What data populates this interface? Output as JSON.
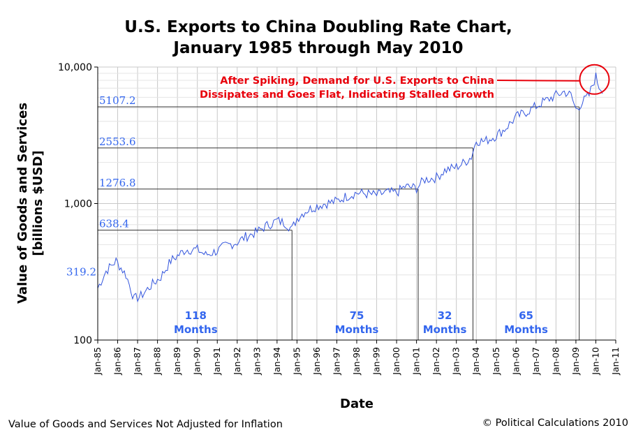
{
  "chart_data": {
    "type": "line",
    "title_lines": [
      "U.S. Exports to China Doubling Rate Chart,",
      "January 1985 through May 2010"
    ],
    "xlabel": "Date",
    "ylabel_lines": [
      "Value of Goods and Services",
      "[billions $USD]"
    ],
    "y_scale": "log",
    "ylim": [
      100,
      10000
    ],
    "y_ticks": [
      100,
      1000,
      10000
    ],
    "y_tick_labels": [
      "100",
      "1,000",
      "10,000"
    ],
    "x_range": [
      "1985-01",
      "2011-01"
    ],
    "x_tick_labels": [
      "Jan-85",
      "Jan-86",
      "Jan-87",
      "Jan-88",
      "Jan-89",
      "Jan-90",
      "Jan-91",
      "Jan-92",
      "Jan-93",
      "Jan-94",
      "Jan-95",
      "Jan-96",
      "Jan-97",
      "Jan-98",
      "Jan-99",
      "Jan-00",
      "Jan-01",
      "Jan-02",
      "Jan-03",
      "Jan-04",
      "Jan-05",
      "Jan-06",
      "Jan-07",
      "Jan-08",
      "Jan-09",
      "Jan-10",
      "Jan-11"
    ],
    "grid": true,
    "series": [
      {
        "color": "#3355dd",
        "anchors": [
          [
            "1985-01",
            240
          ],
          [
            "1985-06",
            320
          ],
          [
            "1985-12",
            380
          ],
          [
            "1986-06",
            300
          ],
          [
            "1986-11",
            200
          ],
          [
            "1987-03",
            210
          ],
          [
            "1987-09",
            250
          ],
          [
            "1988-03",
            290
          ],
          [
            "1988-09",
            380
          ],
          [
            "1989-06",
            460
          ],
          [
            "1990-01",
            460
          ],
          [
            "1990-06",
            420
          ],
          [
            "1991-01",
            450
          ],
          [
            "1991-06",
            490
          ],
          [
            "1992-01",
            520
          ],
          [
            "1992-06",
            570
          ],
          [
            "1993-01",
            620
          ],
          [
            "1993-06",
            680
          ],
          [
            "1994-01",
            750
          ],
          [
            "1994-06",
            720
          ],
          [
            "1994-10",
            650
          ],
          [
            "1995-01",
            780
          ],
          [
            "1995-06",
            880
          ],
          [
            "1996-01",
            960
          ],
          [
            "1996-06",
            1000
          ],
          [
            "1997-01",
            1040
          ],
          [
            "1997-06",
            1120
          ],
          [
            "1998-01",
            1200
          ],
          [
            "1998-06",
            1180
          ],
          [
            "1999-01",
            1150
          ],
          [
            "1999-06",
            1200
          ],
          [
            "2000-01",
            1200
          ],
          [
            "2000-06",
            1330
          ],
          [
            "2001-01",
            1300
          ],
          [
            "2001-06",
            1500
          ],
          [
            "2002-01",
            1550
          ],
          [
            "2002-06",
            1750
          ],
          [
            "2003-01",
            1850
          ],
          [
            "2003-06",
            2000
          ],
          [
            "2003-10",
            2200
          ],
          [
            "2004-01",
            2900
          ],
          [
            "2004-06",
            2850
          ],
          [
            "2005-01",
            3150
          ],
          [
            "2005-06",
            3500
          ],
          [
            "2006-01",
            4300
          ],
          [
            "2006-06",
            4600
          ],
          [
            "2007-01",
            5150
          ],
          [
            "2007-06",
            5600
          ],
          [
            "2008-01",
            6200
          ],
          [
            "2008-06",
            6600
          ],
          [
            "2008-10",
            6200
          ],
          [
            "2009-01",
            4900
          ],
          [
            "2009-03",
            5200
          ],
          [
            "2009-06",
            5700
          ],
          [
            "2009-09",
            6200
          ],
          [
            "2009-11",
            7400
          ],
          [
            "2010-01",
            8500
          ],
          [
            "2010-03",
            7200
          ],
          [
            "2010-05",
            6900
          ]
        ]
      }
    ],
    "doubling_levels": [
      {
        "label": "319.2",
        "value": 319.2
      },
      {
        "label": "638.4",
        "value": 638.4,
        "reached": "1994-10"
      },
      {
        "label": "1276.8",
        "value": 1276.8,
        "reached": "2001-02"
      },
      {
        "label": "2553.6",
        "value": 2553.6,
        "reached": "2003-11"
      },
      {
        "label": "5107.2",
        "value": 5107.2,
        "reached": "2009-03"
      }
    ],
    "periods": [
      {
        "number": "118",
        "unit": "Months",
        "center": "1989-12"
      },
      {
        "number": "75",
        "unit": "Months",
        "center": "1998-01"
      },
      {
        "number": "32",
        "unit": "Months",
        "center": "2002-06"
      },
      {
        "number": "65",
        "unit": "Months",
        "center": "2006-07"
      }
    ],
    "annotation": {
      "lines": [
        "After Spiking, Demand for U.S. Exports to China",
        "Dissipates and Goes Flat, Indicating Stalled Growth"
      ],
      "target": "2010-01",
      "color": "#e8000b"
    }
  },
  "footer": {
    "left": "Value of Goods and Services Not Adjusted for Inflation",
    "right": "© Political Calculations 2010"
  }
}
